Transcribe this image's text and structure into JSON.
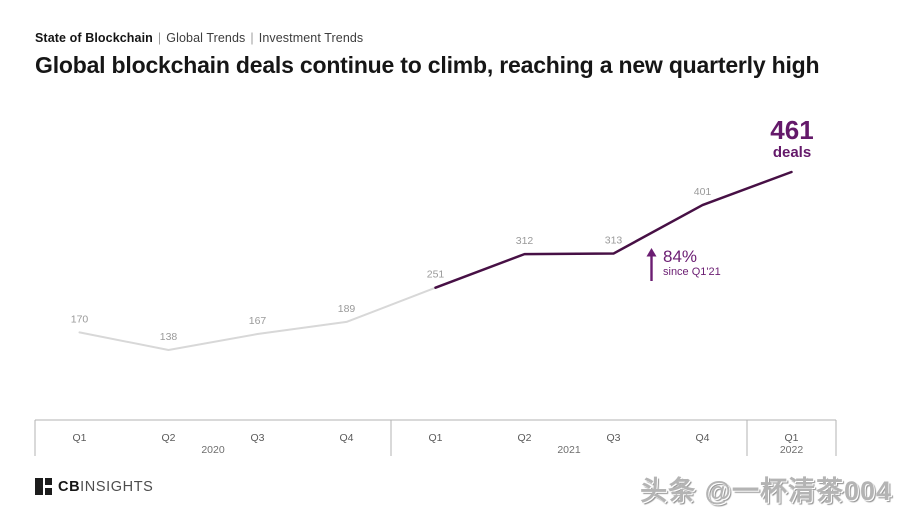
{
  "breadcrumb": {
    "bold": "State of Blockchain",
    "separator": "|",
    "links": [
      "Global Trends",
      "Investment Trends"
    ]
  },
  "title": "Global blockchain deals continue to climb, reaching a new quarterly high",
  "footer": {
    "brand_bold": "CB",
    "brand_light": "INSIGHTS"
  },
  "watermark": {
    "text": "头条 @一杯清茶004"
  },
  "colors": {
    "accent_line": "#471045",
    "accent_text": "#64196a",
    "muted_line": "#d8d8d8",
    "muted_label": "#9a9a9a",
    "axis_line": "#b3b3b3",
    "axis_quarter_text": "#5a5a5a",
    "axis_year_text": "#6e6e6e"
  },
  "chart_data": {
    "type": "line",
    "x": [
      "Q1 2020",
      "Q2 2020",
      "Q3 2020",
      "Q4 2020",
      "Q1 2021",
      "Q2 2021",
      "Q3 2021",
      "Q4 2021",
      "Q1 2022"
    ],
    "values": [
      170,
      138,
      167,
      189,
      251,
      312,
      313,
      401,
      461
    ],
    "unit": "deals",
    "title": "Global blockchain deals by quarter",
    "ylim": [
      138,
      461
    ],
    "grid": false,
    "legend": false,
    "segments": [
      {
        "name": "2020 through Q1 2021",
        "color_key": "muted",
        "from": 0,
        "to": 4
      },
      {
        "name": "Q1 2021 through Q1 2022",
        "color_key": "accent",
        "from": 4,
        "to": 8
      }
    ],
    "groups": [
      {
        "year": "2020",
        "quarters": [
          "Q1",
          "Q2",
          "Q3",
          "Q4"
        ]
      },
      {
        "year": "2021",
        "quarters": [
          "Q1",
          "Q2",
          "Q3",
          "Q4"
        ]
      },
      {
        "year": "2022",
        "quarters": [
          "Q1"
        ]
      }
    ],
    "end_label": {
      "value": "461",
      "unit": "deals"
    },
    "annotation": {
      "value": "84%",
      "note": "since Q1'21",
      "direction": "up"
    }
  }
}
